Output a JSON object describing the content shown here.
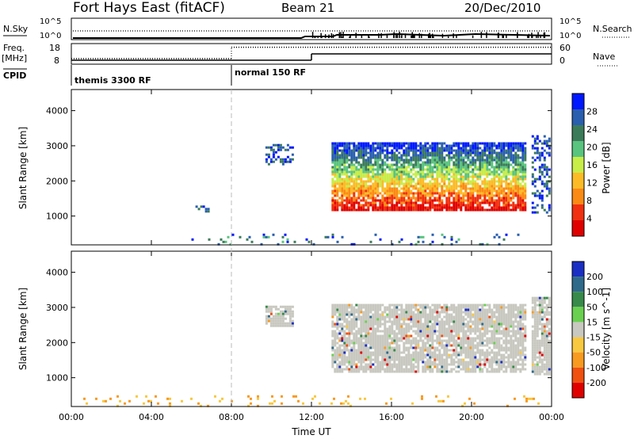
{
  "header": {
    "station": "Fort Hays East (fitACF)",
    "beam": "Beam 21",
    "date": "20/Dec/2010"
  },
  "status_panels": {
    "nsky_label": "N.Sky",
    "nsky_ticks": [
      "10^5",
      "10^0"
    ],
    "nsearch_label": "N.Search",
    "nsearch_ticks": [
      "10^5",
      "10^0"
    ],
    "freq_label": "Freq.",
    "freq_unit": "[MHz]",
    "freq_ticks": [
      "18",
      "8"
    ],
    "nave_label": "Nave",
    "nave_ticks": [
      "60",
      "0"
    ],
    "cpid_label": "CPID",
    "cpid_segments": [
      {
        "label": "themis 3300 RF",
        "start_hour": 0
      },
      {
        "label": "normal 150 RF",
        "start_hour": 8
      }
    ],
    "freq_mhz": [
      {
        "from_hour": 0,
        "to_hour": 8,
        "value": 10.5
      },
      {
        "from_hour": 8,
        "to_hour": 24,
        "value": 16.5
      }
    ],
    "nave": [
      {
        "from_hour": 0,
        "to_hour": 12,
        "value": 10
      },
      {
        "from_hour": 12,
        "to_hour": 24,
        "value": 30
      }
    ]
  },
  "chart_data": [
    {
      "type": "heatmap",
      "parameter": "power",
      "ylabel": "Slant Range [km]",
      "xlabel": "Time UT",
      "x_ticks": [
        "00:00",
        "04:00",
        "08:00",
        "12:00",
        "16:00",
        "20:00",
        "00:00"
      ],
      "x_range_hours": [
        0,
        24
      ],
      "y_ticks": [
        1000,
        2000,
        3000,
        4000
      ],
      "ylim": [
        180,
        4600
      ],
      "colorbar": {
        "label": "Power [dB]",
        "ticks": [
          "28",
          "24",
          "20",
          "16",
          "12",
          "8",
          "4"
        ],
        "colors": [
          "#0018ff",
          "#2a5fb0",
          "#3c7b5a",
          "#59c47e",
          "#c8ec48",
          "#fcbb26",
          "#fb8a14",
          "#f03010",
          "#e00000"
        ]
      },
      "regions": [
        {
          "hours": [
            13.0,
            22.7
          ],
          "range_km": [
            1200,
            3100
          ],
          "level": "high"
        },
        {
          "hours": [
            9.7,
            11.1
          ],
          "range_km": [
            2500,
            3050
          ],
          "level": "low"
        },
        {
          "hours": [
            6.2,
            6.8
          ],
          "range_km": [
            1100,
            1300
          ],
          "level": "low"
        },
        {
          "hours": [
            23.0,
            23.9
          ],
          "range_km": [
            1100,
            3300
          ],
          "level": "low"
        },
        {
          "hours": [
            6.0,
            23.5
          ],
          "range_km": [
            200,
            500
          ],
          "level": "ground"
        }
      ]
    },
    {
      "type": "heatmap",
      "parameter": "velocity",
      "ylabel": "Slant Range [km]",
      "xlabel": "Time UT",
      "x_ticks": [
        "00:00",
        "04:00",
        "08:00",
        "12:00",
        "16:00",
        "20:00",
        "00:00"
      ],
      "x_range_hours": [
        0,
        24
      ],
      "y_ticks": [
        1000,
        2000,
        3000,
        4000
      ],
      "ylim": [
        180,
        4600
      ],
      "colorbar": {
        "label": "Velocity [m s^-1]",
        "ticks": [
          "200",
          "100",
          "50",
          "15",
          "-15",
          "-50",
          "-100",
          "-200"
        ],
        "colors": [
          "#1a2ec4",
          "#2f6a8a",
          "#378a4a",
          "#6ad050",
          "#c8c8c0",
          "#f8c840",
          "#f89a20",
          "#f05010",
          "#e00000"
        ]
      },
      "regions": [
        {
          "hours": [
            13.0,
            22.7
          ],
          "range_km": [
            1200,
            3100
          ],
          "level": "near-zero"
        },
        {
          "hours": [
            9.7,
            11.1
          ],
          "range_km": [
            2500,
            3050
          ],
          "level": "near-zero"
        },
        {
          "hours": [
            23.0,
            23.9
          ],
          "range_km": [
            1100,
            3300
          ],
          "level": "near-zero"
        },
        {
          "hours": [
            0.0,
            23.5
          ],
          "range_km": [
            200,
            500
          ],
          "level": "ground-negative"
        }
      ]
    }
  ]
}
